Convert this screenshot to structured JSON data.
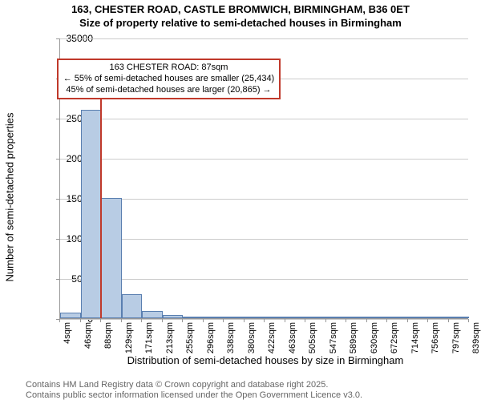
{
  "titles": {
    "line1": "163, CHESTER ROAD, CASTLE BROMWICH, BIRMINGHAM, B36 0ET",
    "line2": "Size of property relative to semi-detached houses in Birmingham"
  },
  "chart": {
    "type": "histogram",
    "ylabel": "Number of semi-detached properties",
    "xlabel": "Distribution of semi-detached houses by size in Birmingham",
    "ylim": [
      0,
      35000
    ],
    "ytick_step": 5000,
    "y_gridlines": [
      0,
      5000,
      10000,
      15000,
      20000,
      25000,
      30000,
      35000
    ],
    "grid_color": "#cccccc",
    "plot_border_color": "#999999",
    "background_color": "#ffffff",
    "bar_fill": "#b8cce4",
    "bar_stroke": "#5a7fb0",
    "xtick_labels": [
      "4sqm",
      "46sqm",
      "88sqm",
      "129sqm",
      "171sqm",
      "213sqm",
      "255sqm",
      "296sqm",
      "338sqm",
      "380sqm",
      "422sqm",
      "463sqm",
      "505sqm",
      "547sqm",
      "589sqm",
      "630sqm",
      "672sqm",
      "714sqm",
      "756sqm",
      "797sqm",
      "839sqm"
    ],
    "xtick_positions": [
      0,
      1,
      2,
      3,
      4,
      5,
      6,
      7,
      8,
      9,
      10,
      11,
      12,
      13,
      14,
      15,
      16,
      17,
      18,
      19,
      20
    ],
    "n_bins": 20,
    "bars": [
      {
        "bin": 0,
        "value": 700
      },
      {
        "bin": 1,
        "value": 26000
      },
      {
        "bin": 2,
        "value": 15000
      },
      {
        "bin": 3,
        "value": 3000
      },
      {
        "bin": 4,
        "value": 900
      },
      {
        "bin": 5,
        "value": 400
      },
      {
        "bin": 6,
        "value": 200
      },
      {
        "bin": 7,
        "value": 120
      },
      {
        "bin": 8,
        "value": 80
      },
      {
        "bin": 9,
        "value": 60
      },
      {
        "bin": 10,
        "value": 40
      },
      {
        "bin": 11,
        "value": 30
      },
      {
        "bin": 12,
        "value": 20
      },
      {
        "bin": 13,
        "value": 20
      },
      {
        "bin": 14,
        "value": 15
      },
      {
        "bin": 15,
        "value": 10
      },
      {
        "bin": 16,
        "value": 10
      },
      {
        "bin": 17,
        "value": 10
      },
      {
        "bin": 18,
        "value": 8
      },
      {
        "bin": 19,
        "value": 8
      }
    ],
    "marker": {
      "value_x": 87,
      "x_min": 4,
      "x_max": 839,
      "color": "#c0392b",
      "height_value": 29500
    },
    "annotation": {
      "border_color": "#c0392b",
      "lines": [
        "163 CHESTER ROAD: 87sqm",
        "← 55% of semi-detached houses are smaller (25,434)",
        "45% of semi-detached houses are larger (20,865) →"
      ],
      "top_value": 32500
    },
    "label_fontsize": 13,
    "tick_fontsize": 12,
    "xtick_fontsize": 11
  },
  "footnote": {
    "line1": "Contains HM Land Registry data © Crown copyright and database right 2025.",
    "line2": "Contains public sector information licensed under the Open Government Licence v3.0.",
    "color": "#666666"
  }
}
